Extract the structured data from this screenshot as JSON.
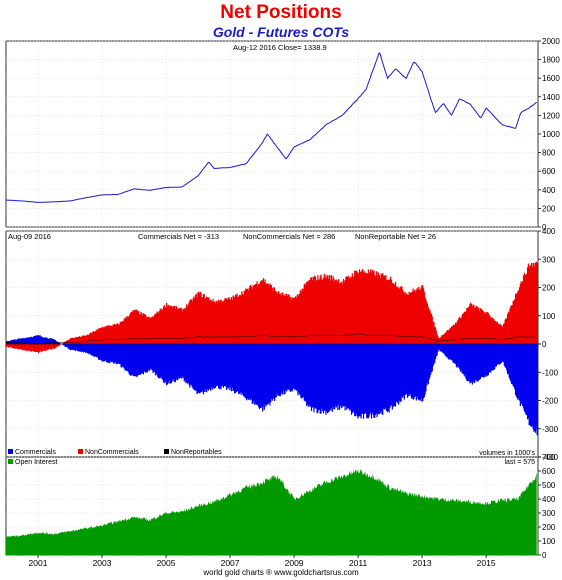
{
  "header": {
    "title": "Net Positions",
    "subtitle": "Gold - Futures COTs"
  },
  "footer": {
    "credit": "world gold charts ® www.goldchartsrus.com"
  },
  "colors": {
    "title": "#ee0000",
    "subtitle": "#1a1acc",
    "price_line": "#1a1acc",
    "commercials": "#0000ee",
    "noncommercials": "#ee0000",
    "nonreportables": "#000000",
    "open_interest": "#009900"
  },
  "chart_data": [
    {
      "type": "line",
      "panel": "price",
      "annotation": "Aug-12  2016    Close= 1338.9",
      "x": [
        "2000-01",
        "2000-07",
        "2001-01",
        "2001-07",
        "2002-01",
        "2002-07",
        "2003-01",
        "2003-07",
        "2004-01",
        "2004-07",
        "2005-01",
        "2005-07",
        "2006-01",
        "2006-05",
        "2006-07",
        "2007-01",
        "2007-07",
        "2008-01",
        "2008-03",
        "2008-10",
        "2009-01",
        "2009-07",
        "2010-01",
        "2010-07",
        "2011-01",
        "2011-04",
        "2011-08",
        "2011-09",
        "2011-12",
        "2012-03",
        "2012-07",
        "2012-10",
        "2013-01",
        "2013-04",
        "2013-06",
        "2013-09",
        "2013-12",
        "2014-03",
        "2014-07",
        "2014-11",
        "2015-01",
        "2015-04",
        "2015-07",
        "2015-12",
        "2016-02",
        "2016-05",
        "2016-08"
      ],
      "series": [
        {
          "values": [
            290,
            280,
            265,
            270,
            280,
            315,
            345,
            350,
            410,
            395,
            425,
            430,
            550,
            700,
            630,
            640,
            680,
            900,
            1000,
            730,
            860,
            940,
            1100,
            1200,
            1380,
            1480,
            1800,
            1880,
            1600,
            1700,
            1600,
            1780,
            1670,
            1400,
            1230,
            1330,
            1200,
            1380,
            1320,
            1170,
            1280,
            1190,
            1100,
            1060,
            1230,
            1280,
            1338.9
          ]
        }
      ],
      "ylim": [
        0,
        2000
      ],
      "yticks": [
        0,
        200,
        400,
        600,
        800,
        1000,
        1200,
        1400,
        1600,
        1800,
        2000
      ]
    },
    {
      "type": "area",
      "panel": "net_positions",
      "annotation_date": "Aug-09  2016",
      "annotations": [
        "Commercials Net = -313",
        "NonCommercials Net = 286",
        "NonReportable Net = 26"
      ],
      "x": [
        "2000-01",
        "2000-07",
        "2001-01",
        "2001-07",
        "2002-01",
        "2002-07",
        "2003-01",
        "2003-07",
        "2004-01",
        "2004-07",
        "2005-01",
        "2005-07",
        "2006-01",
        "2006-07",
        "2007-01",
        "2007-07",
        "2008-01",
        "2008-07",
        "2009-01",
        "2009-07",
        "2010-01",
        "2010-07",
        "2011-01",
        "2011-07",
        "2012-01",
        "2012-07",
        "2013-01",
        "2013-07",
        "2014-01",
        "2014-07",
        "2015-01",
        "2015-07",
        "2016-01",
        "2016-05",
        "2016-08"
      ],
      "series": [
        {
          "name": "Commercials",
          "values": [
            10,
            20,
            30,
            15,
            -20,
            -30,
            -60,
            -70,
            -120,
            -90,
            -140,
            -120,
            -180,
            -150,
            -160,
            -190,
            -230,
            -180,
            -160,
            -230,
            -240,
            -220,
            -260,
            -250,
            -230,
            -180,
            -200,
            -20,
            -70,
            -140,
            -110,
            -60,
            -200,
            -280,
            -313
          ]
        },
        {
          "name": "NonCommercials",
          "values": [
            -10,
            -20,
            -30,
            -15,
            20,
            30,
            60,
            70,
            120,
            90,
            140,
            120,
            180,
            150,
            160,
            190,
            230,
            180,
            160,
            230,
            240,
            220,
            260,
            250,
            230,
            180,
            200,
            20,
            70,
            140,
            110,
            60,
            200,
            280,
            286
          ]
        },
        {
          "name": "NonReportables",
          "values": [
            5,
            5,
            0,
            5,
            5,
            10,
            15,
            15,
            20,
            20,
            20,
            20,
            25,
            25,
            25,
            25,
            30,
            25,
            25,
            30,
            30,
            30,
            35,
            30,
            30,
            25,
            25,
            10,
            15,
            20,
            20,
            15,
            25,
            25,
            26
          ]
        }
      ],
      "ylim": [
        -400,
        400
      ],
      "yticks": [
        -400,
        -300,
        -200,
        -100,
        0,
        100,
        200,
        300,
        400
      ],
      "legend": [
        "Commercials",
        "NonCommercials",
        "NonReportables"
      ],
      "units_note": "volumes in 1000's"
    },
    {
      "type": "area",
      "panel": "open_interest",
      "annotation": "last = 575",
      "x": [
        "2000-01",
        "2000-07",
        "2001-01",
        "2001-07",
        "2002-01",
        "2002-07",
        "2003-01",
        "2003-07",
        "2004-01",
        "2004-07",
        "2005-01",
        "2005-07",
        "2006-01",
        "2006-07",
        "2007-01",
        "2007-07",
        "2008-01",
        "2008-07",
        "2009-01",
        "2009-07",
        "2010-01",
        "2010-07",
        "2011-01",
        "2011-07",
        "2012-01",
        "2012-07",
        "2013-01",
        "2013-07",
        "2014-01",
        "2014-07",
        "2015-01",
        "2015-07",
        "2016-01",
        "2016-05",
        "2016-08"
      ],
      "series": [
        {
          "name": "Open Interest",
          "values": [
            130,
            140,
            160,
            150,
            170,
            190,
            210,
            240,
            270,
            250,
            300,
            310,
            350,
            380,
            430,
            480,
            520,
            560,
            400,
            460,
            520,
            560,
            600,
            560,
            480,
            440,
            420,
            400,
            390,
            380,
            370,
            390,
            400,
            500,
            575
          ]
        }
      ],
      "ylim": [
        0,
        700
      ],
      "yticks": [
        0,
        100,
        200,
        300,
        400,
        500,
        600,
        700
      ]
    }
  ],
  "x_axis": {
    "tick_labels": [
      "2001",
      "2003",
      "2005",
      "2007",
      "2009",
      "2011",
      "2013",
      "2015"
    ]
  }
}
